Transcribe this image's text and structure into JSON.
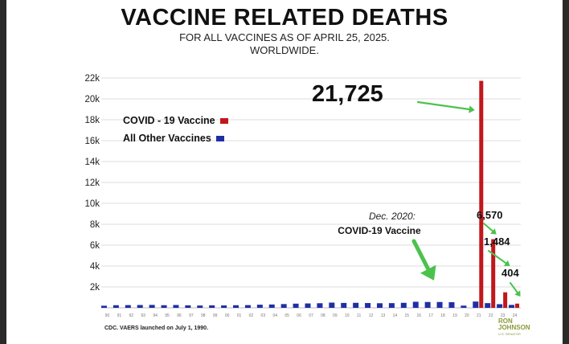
{
  "chart_data": {
    "type": "bar",
    "title": "VACCINE RELATED DEATHS",
    "subtitle_lines": [
      "FOR ALL VACCINES AS OF APRIL 25, 2025.",
      "WORLDWIDE."
    ],
    "yticks": [
      "2k",
      "4k",
      "6k",
      "8k",
      "10k",
      "12k",
      "14k",
      "16k",
      "18k",
      "20k",
      "22k"
    ],
    "ylim": [
      0,
      22000
    ],
    "categories": [
      "90",
      "91",
      "92",
      "93",
      "94",
      "95",
      "96",
      "97",
      "98",
      "99",
      "00",
      "01",
      "02",
      "03",
      "04",
      "05",
      "06",
      "07",
      "08",
      "09",
      "10",
      "11",
      "12",
      "13",
      "14",
      "15",
      "16",
      "17",
      "18",
      "19",
      "20",
      "21",
      "22",
      "23",
      "24"
    ],
    "series": [
      {
        "name": "COVID - 19 Vaccine",
        "color": "#c0171c",
        "values": [
          0,
          0,
          0,
          0,
          0,
          0,
          0,
          0,
          0,
          0,
          0,
          0,
          0,
          0,
          0,
          0,
          0,
          0,
          0,
          0,
          0,
          0,
          0,
          0,
          0,
          0,
          0,
          0,
          0,
          0,
          0,
          21725,
          6570,
          1484,
          404
        ]
      },
      {
        "name": "All Other Vaccines",
        "color": "#1f2fa3",
        "values": [
          200,
          250,
          260,
          270,
          280,
          250,
          270,
          240,
          220,
          240,
          230,
          250,
          260,
          300,
          320,
          360,
          400,
          420,
          440,
          500,
          470,
          480,
          460,
          440,
          450,
          480,
          580,
          560,
          560,
          540,
          210,
          600,
          450,
          350,
          280
        ]
      }
    ],
    "annotations": [
      {
        "text": "21,725",
        "target_index": 31
      },
      {
        "text": "6,570",
        "target_index": 32
      },
      {
        "text": "1,484",
        "target_index": 33
      },
      {
        "text": "404",
        "target_index": 34
      },
      {
        "text": "Dec. 2020:",
        "text2": "COVID-19 Vaccine",
        "target_index": 30
      }
    ],
    "grid": true,
    "legend_position": "top-left",
    "footnote": "CDC. VAERS launched on July 1, 1990."
  },
  "logo": {
    "line1": "RON",
    "line2": "JOHNSON",
    "line3": "U.S. SENATOR"
  }
}
